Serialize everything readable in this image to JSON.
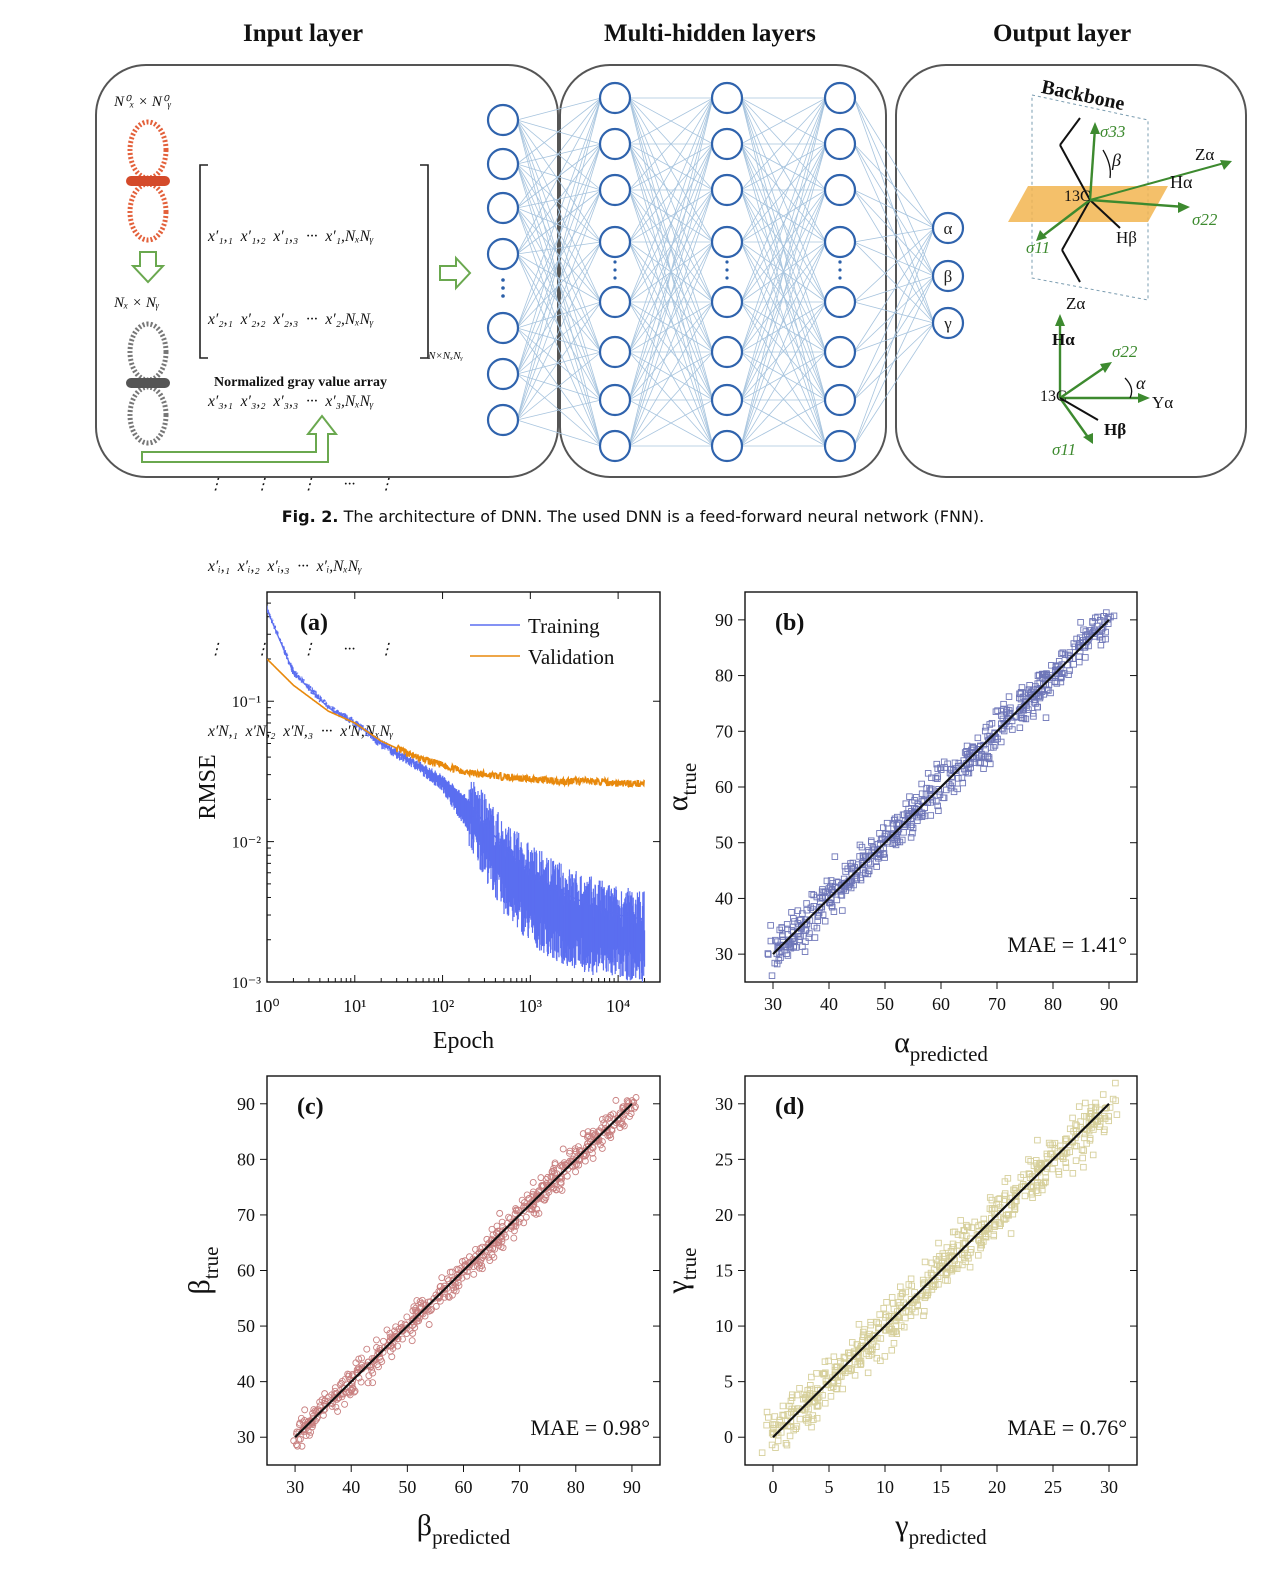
{
  "figure2": {
    "titles": {
      "input": "Input layer",
      "hidden": "Multi-hidden layers",
      "output": "Output layer"
    },
    "input": {
      "top_size": "N⁰ₓ × N⁰ᵧ",
      "bottom_size": "Nₓ × Nᵧ",
      "matrix_rows": [
        "x′₁,₁  x′₁,₂  x′₁,₃  ···  x′₁,NₓNᵧ",
        "x′₂,₁  x′₂,₂  x′₂,₃  ···  x′₂,NₓNᵧ",
        "x′₃,₁  x′₃,₂  x′₃,₃  ···  x′₃,NₓNᵧ",
        "⋮        ⋮        ⋮       ···      ⋮",
        "x′ᵢ,₁  x′ᵢ,₂  x′ᵢ,₃  ···  x′ᵢ,NₓNᵧ",
        "⋮        ⋮        ⋮       ···      ⋮",
        "x′N,₁  x′N,₂  x′N,₃  ···  x′N,NₓNᵧ"
      ],
      "matrix_subscript": "N×NₓNᵧ",
      "array_label": "Normalized gray value array"
    },
    "outputs": [
      "α",
      "β",
      "γ"
    ],
    "output_panel": {
      "backbone": "Backbone",
      "labels_top": {
        "s33": "σ33",
        "beta": "β",
        "za": "Zα",
        "ha": "Hα",
        "c13": "13C",
        "s22": "σ22",
        "hb": "Hβ",
        "s11": "σ11"
      },
      "labels_bottom": {
        "za": "Zα",
        "ha": "Hα",
        "s22": "σ22",
        "alpha": "α",
        "c13": "13C",
        "ya": "Yα",
        "hb": "Hβ",
        "s11": "σ11"
      }
    },
    "caption_bold": "Fig. 2.",
    "caption_text": "The architecture of DNN. The used DNN is a feed-forward neural network (FNN)."
  },
  "chart_data": [
    {
      "panel": "(a)",
      "type": "line",
      "xlabel": "Epoch",
      "ylabel": "RMSE",
      "xscale": "log",
      "yscale": "log",
      "xlim": [
        1,
        30000
      ],
      "ylim": [
        0.001,
        0.6
      ],
      "xticks": [
        "10⁰",
        "10¹",
        "10²",
        "10³",
        "10⁴"
      ],
      "yticks": [
        "10⁻³",
        "10⁻²",
        "10⁻¹"
      ],
      "legend_position": "top-right",
      "series": [
        {
          "name": "Training",
          "color": "#5b6ef0",
          "x": [
            1,
            2,
            5,
            10,
            20,
            50,
            100,
            200,
            500,
            1000,
            2000,
            5000,
            10000,
            20000
          ],
          "y": [
            0.45,
            0.16,
            0.09,
            0.07,
            0.05,
            0.036,
            0.028,
            0.019,
            0.009,
            0.006,
            0.0045,
            0.0035,
            0.003,
            0.0028
          ],
          "band_low": [
            0.45,
            0.16,
            0.09,
            0.07,
            0.048,
            0.034,
            0.024,
            0.012,
            0.004,
            0.0025,
            0.0018,
            0.0015,
            0.0014,
            0.0013
          ]
        },
        {
          "name": "Validation",
          "color": "#e8890c",
          "x": [
            1,
            2,
            5,
            10,
            20,
            50,
            100,
            200,
            500,
            1000,
            2000,
            5000,
            10000,
            20000
          ],
          "y": [
            0.2,
            0.13,
            0.085,
            0.07,
            0.052,
            0.04,
            0.035,
            0.031,
            0.029,
            0.028,
            0.027,
            0.027,
            0.026,
            0.026
          ]
        }
      ]
    },
    {
      "panel": "(b)",
      "type": "scatter",
      "xlabel": "α",
      "xlabel_sub": "predicted",
      "ylabel": "α",
      "ylabel_sub": "true",
      "xlim": [
        25,
        95
      ],
      "ylim": [
        25,
        95
      ],
      "xticks": [
        30,
        40,
        50,
        60,
        70,
        80,
        90
      ],
      "yticks": [
        30,
        40,
        50,
        60,
        70,
        80,
        90
      ],
      "line": [
        [
          30,
          30
        ],
        [
          90,
          90
        ]
      ],
      "scatter_spread": 2.0,
      "marker": "square",
      "color": "#6e76b8",
      "annotation": "MAE = 1.41°"
    },
    {
      "panel": "(c)",
      "type": "scatter",
      "xlabel": "β",
      "xlabel_sub": "predicted",
      "ylabel": "β",
      "ylabel_sub": "true",
      "xlim": [
        25,
        95
      ],
      "ylim": [
        25,
        95
      ],
      "xticks": [
        30,
        40,
        50,
        60,
        70,
        80,
        90
      ],
      "yticks": [
        30,
        40,
        50,
        60,
        70,
        80,
        90
      ],
      "line": [
        [
          30,
          30
        ],
        [
          90,
          90
        ]
      ],
      "scatter_spread": 1.4,
      "marker": "circle",
      "color": "#c98080",
      "annotation": "MAE = 0.98°"
    },
    {
      "panel": "(d)",
      "type": "scatter",
      "xlabel": "γ",
      "xlabel_sub": "predicted",
      "ylabel": "γ",
      "ylabel_sub": "true",
      "xlim": [
        -2.5,
        32.5
      ],
      "ylim": [
        -2.5,
        32.5
      ],
      "xticks": [
        0,
        5,
        10,
        15,
        20,
        25,
        30
      ],
      "yticks": [
        0,
        5,
        10,
        15,
        20,
        25,
        30
      ],
      "line": [
        [
          0,
          0
        ],
        [
          30,
          30
        ]
      ],
      "scatter_spread": 1.2,
      "marker": "square",
      "color": "#d6cf9a",
      "annotation": "MAE = 0.76°"
    }
  ]
}
